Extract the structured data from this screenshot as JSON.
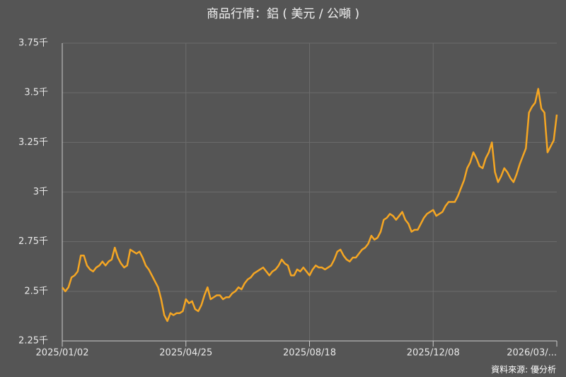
{
  "chart_data": {
    "type": "line",
    "title": "商品行情：鋁 ( 美元 / 公噸 )",
    "source": "資料來源: 優分析",
    "categories": [
      "2025/01/02",
      null,
      null,
      null,
      null,
      null,
      null,
      null,
      null,
      null,
      null,
      null,
      null,
      null,
      null,
      null,
      null,
      null,
      null,
      null,
      null,
      null,
      null,
      null,
      null,
      null,
      null,
      null,
      null,
      null,
      null,
      null,
      null,
      null,
      null,
      null,
      null,
      null,
      null,
      null,
      "2025/04/25",
      null,
      null,
      null,
      null,
      null,
      null,
      null,
      null,
      null,
      null,
      null,
      null,
      null,
      null,
      null,
      null,
      null,
      null,
      null,
      null,
      null,
      null,
      null,
      null,
      null,
      null,
      null,
      null,
      null,
      null,
      null,
      null,
      null,
      null,
      null,
      null,
      null,
      null,
      null,
      "2025/08/18",
      null,
      null,
      null,
      null,
      null,
      null,
      null,
      null,
      null,
      null,
      null,
      null,
      null,
      null,
      null,
      null,
      null,
      null,
      null,
      null,
      null,
      null,
      null,
      null,
      null,
      null,
      null,
      null,
      null,
      null,
      null,
      null,
      null,
      null,
      null,
      null,
      null,
      null,
      null,
      "2025/12/08",
      null,
      null,
      null,
      null,
      null,
      null,
      null,
      null,
      null,
      null,
      null,
      null,
      null,
      null,
      null,
      null,
      null,
      null,
      null,
      null,
      null,
      null,
      null,
      null,
      null,
      null,
      null,
      null,
      null,
      null,
      null,
      null,
      null,
      null,
      null,
      null,
      null,
      null,
      null,
      "2026/03/..."
    ],
    "values": [
      2.52,
      2.5,
      2.52,
      2.57,
      2.58,
      2.6,
      2.68,
      2.68,
      2.63,
      2.61,
      2.6,
      2.62,
      2.63,
      2.65,
      2.63,
      2.65,
      2.66,
      2.72,
      2.67,
      2.64,
      2.62,
      2.63,
      2.71,
      2.7,
      2.69,
      2.7,
      2.67,
      2.63,
      2.61,
      2.58,
      2.55,
      2.52,
      2.46,
      2.38,
      2.35,
      2.39,
      2.38,
      2.39,
      2.39,
      2.4,
      2.46,
      2.44,
      2.45,
      2.41,
      2.4,
      2.43,
      2.48,
      2.52,
      2.46,
      2.47,
      2.48,
      2.48,
      2.46,
      2.47,
      2.47,
      2.49,
      2.5,
      2.52,
      2.51,
      2.54,
      2.56,
      2.57,
      2.59,
      2.6,
      2.61,
      2.62,
      2.6,
      2.58,
      2.6,
      2.61,
      2.63,
      2.66,
      2.64,
      2.63,
      2.58,
      2.58,
      2.61,
      2.6,
      2.62,
      2.6,
      2.58,
      2.61,
      2.63,
      2.62,
      2.62,
      2.61,
      2.62,
      2.63,
      2.66,
      2.7,
      2.71,
      2.68,
      2.66,
      2.65,
      2.67,
      2.67,
      2.69,
      2.71,
      2.72,
      2.74,
      2.78,
      2.76,
      2.77,
      2.8,
      2.86,
      2.87,
      2.89,
      2.88,
      2.86,
      2.88,
      2.9,
      2.86,
      2.84,
      2.8,
      2.81,
      2.81,
      2.84,
      2.87,
      2.89,
      2.9,
      2.91,
      2.88,
      2.89,
      2.9,
      2.93,
      2.95,
      2.95,
      2.95,
      2.98,
      3.02,
      3.06,
      3.12,
      3.15,
      3.2,
      3.17,
      3.13,
      3.12,
      3.17,
      3.2,
      3.25,
      3.1,
      3.05,
      3.08,
      3.12,
      3.1,
      3.07,
      3.05,
      3.09,
      3.14,
      3.18,
      3.22,
      3.4,
      3.43,
      3.45,
      3.52,
      3.42,
      3.4,
      3.2,
      3.23,
      3.26,
      3.39
    ],
    "color": "#f5a623",
    "ylim": [
      2.25,
      3.75
    ],
    "yticks": [
      {
        "value": 2.25,
        "label": "2.25千"
      },
      {
        "value": 2.5,
        "label": "2.5千"
      },
      {
        "value": 2.75,
        "label": "2.75千"
      },
      {
        "value": 3,
        "label": "3千"
      },
      {
        "value": 3.25,
        "label": "3.25千"
      },
      {
        "value": 3.5,
        "label": "3.5千"
      },
      {
        "value": 3.75,
        "label": "3.75千"
      }
    ],
    "grid": true
  }
}
